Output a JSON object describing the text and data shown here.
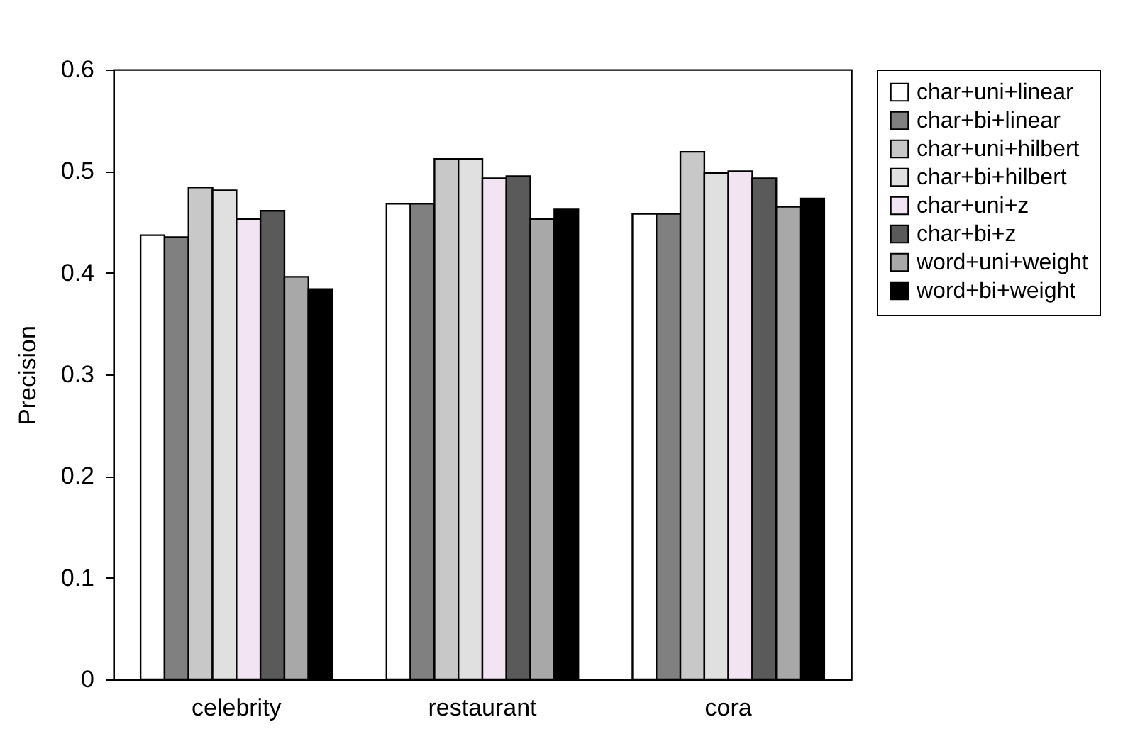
{
  "chart_data": {
    "type": "bar",
    "ylabel": "Precision",
    "categories": [
      "celebrity",
      "restaurant",
      "cora"
    ],
    "series": [
      {
        "name": "char+uni+linear",
        "color": "#ffffff",
        "values": [
          0.437,
          0.468,
          0.458
        ]
      },
      {
        "name": "char+bi+linear",
        "color": "#808080",
        "values": [
          0.435,
          0.468,
          0.458
        ]
      },
      {
        "name": "char+uni+hilbert",
        "color": "#c8c8c8",
        "values": [
          0.484,
          0.512,
          0.519
        ]
      },
      {
        "name": "char+bi+hilbert",
        "color": "#e0e0e0",
        "values": [
          0.481,
          0.512,
          0.498
        ]
      },
      {
        "name": "char+uni+z",
        "color": "#f3e4f3",
        "values": [
          0.453,
          0.493,
          0.5
        ]
      },
      {
        "name": "char+bi+z",
        "color": "#5a5a5a",
        "values": [
          0.461,
          0.495,
          0.493
        ]
      },
      {
        "name": "word+uni+weight",
        "color": "#a8a8a8",
        "values": [
          0.396,
          0.453,
          0.465
        ]
      },
      {
        "name": "word+bi+weight",
        "color": "#000000",
        "values": [
          0.384,
          0.463,
          0.473
        ]
      }
    ],
    "ylim": [
      0,
      0.6
    ],
    "yticks": [
      0,
      0.1,
      0.2,
      0.3,
      0.4,
      0.5,
      0.6
    ],
    "grid": false,
    "legend": "right"
  }
}
